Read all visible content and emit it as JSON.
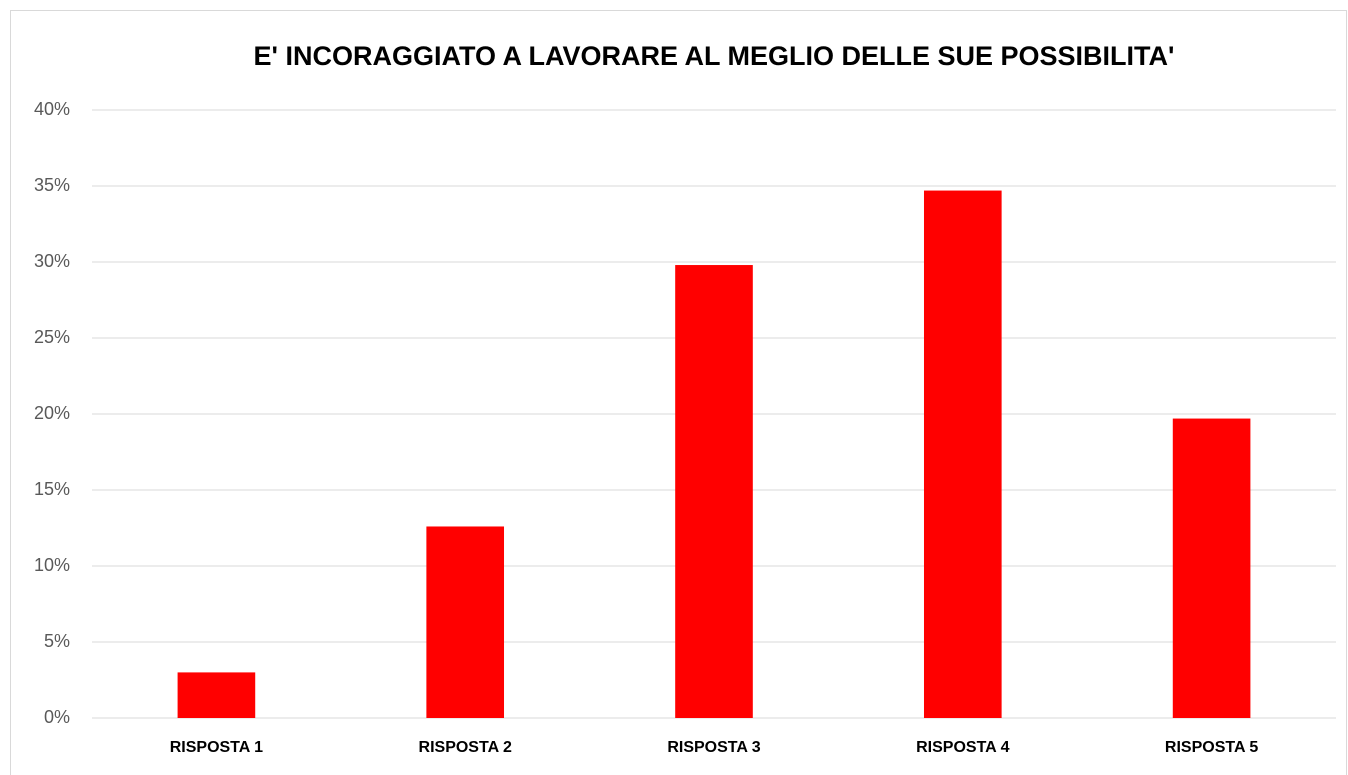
{
  "chart_data": {
    "type": "bar",
    "title": "E' INCORAGGIATO A LAVORARE AL MEGLIO DELLE SUE POSSIBILITA'",
    "categories": [
      "RISPOSTA 1",
      "RISPOSTA 2",
      "RISPOSTA 3",
      "RISPOSTA 4",
      "RISPOSTA 5"
    ],
    "values": [
      3,
      12.6,
      29.8,
      34.7,
      19.7
    ],
    "color": "#ff0000",
    "ylim": [
      0,
      40
    ],
    "yticks": [
      {
        "value": 0,
        "label": "0%"
      },
      {
        "value": 5,
        "label": "5%"
      },
      {
        "value": 10,
        "label": "10%"
      },
      {
        "value": 15,
        "label": "15%"
      },
      {
        "value": 20,
        "label": "20%"
      },
      {
        "value": 25,
        "label": "25%"
      },
      {
        "value": 30,
        "label": "30%"
      },
      {
        "value": 35,
        "label": "35%"
      },
      {
        "value": 40,
        "label": "40%"
      }
    ],
    "grid": true
  }
}
